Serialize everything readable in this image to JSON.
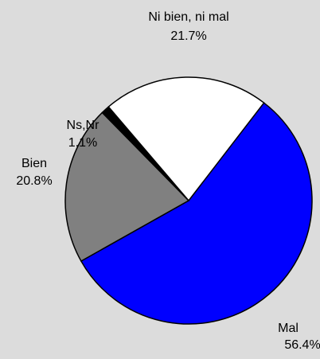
{
  "chart_data": {
    "type": "pie",
    "categories": [
      "Mal",
      "Bien",
      "Ns,Nr",
      "Ni bien, ni mal"
    ],
    "values": [
      56.4,
      20.8,
      1.1,
      21.7
    ],
    "value_labels": [
      "56.4%",
      "20.8%",
      "1.1%",
      "21.7%"
    ],
    "colors": [
      "#0000ff",
      "#808080",
      "#000000",
      "#ffffff"
    ]
  }
}
